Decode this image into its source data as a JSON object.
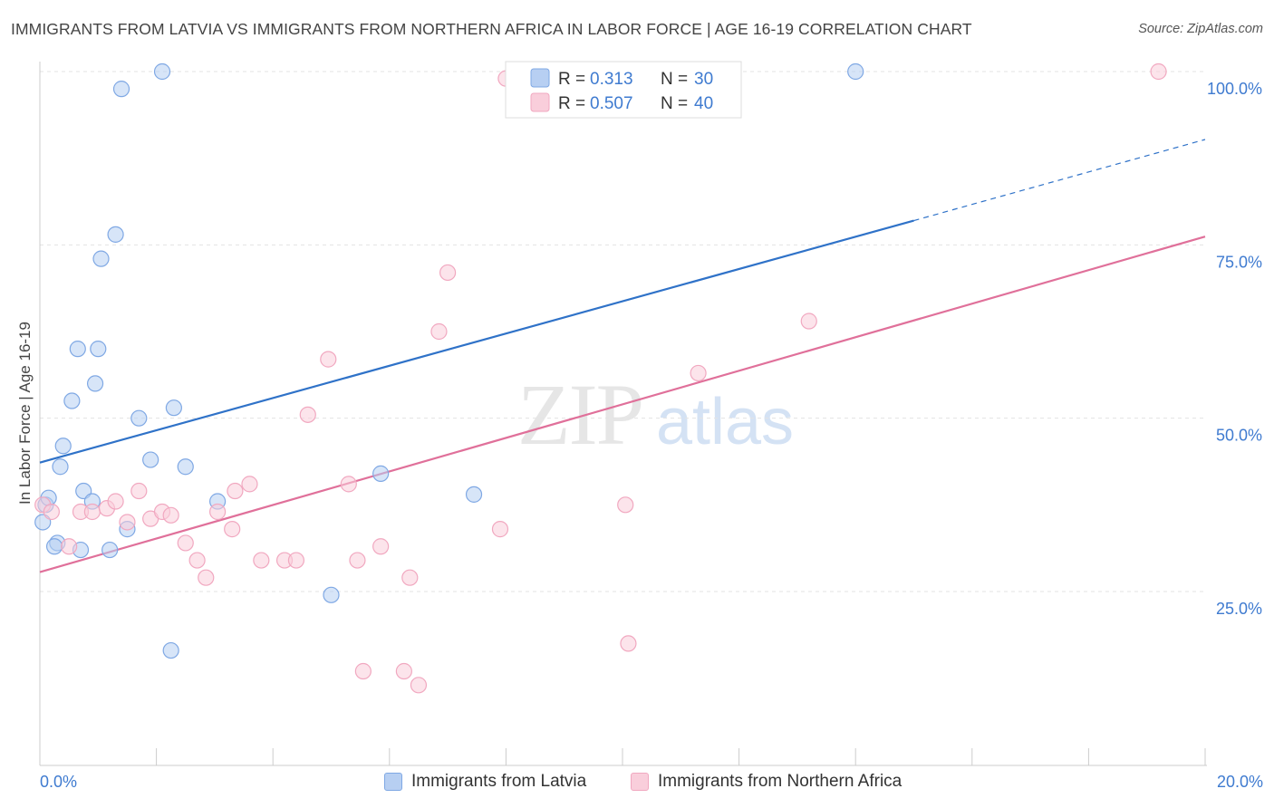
{
  "title": "IMMIGRANTS FROM LATVIA VS IMMIGRANTS FROM NORTHERN AFRICA IN LABOR FORCE | AGE 16-19 CORRELATION CHART",
  "source": "Source: ZipAtlas.com",
  "watermark": {
    "zip": "ZIP",
    "atlas": "atlas"
  },
  "chart_data": {
    "type": "scatter",
    "xlabel": "",
    "ylabel": "In Labor Force | Age 16-19",
    "xlim": [
      0,
      20
    ],
    "ylim": [
      0,
      102
    ],
    "x_tick_labels": [
      "0.0%",
      "20.0%"
    ],
    "y_ticks": [
      25,
      50,
      75,
      100
    ],
    "y_tick_labels": [
      "25.0%",
      "50.0%",
      "75.0%",
      "100.0%"
    ],
    "grid": true,
    "legend": [
      {
        "label": "R =",
        "r": "0.313",
        "n_label": "N =",
        "n": "30"
      },
      {
        "label": "R =",
        "r": "0.507",
        "n_label": "N =",
        "n": "40"
      }
    ],
    "series": [
      {
        "name": "Immigrants from Latvia",
        "color": "#7fa8e4",
        "fill": "#b7cff2",
        "line_color": "#2f72c8",
        "trend": {
          "x0": 0.0,
          "y0": 43.6,
          "x1": 15.0,
          "y1": 78.5,
          "dash_to_x": 20.0,
          "dash_to_y": 90.2
        },
        "points": [
          [
            0.1,
            37.5
          ],
          [
            0.05,
            35.0
          ],
          [
            0.15,
            38.5
          ],
          [
            0.3,
            32.0
          ],
          [
            0.25,
            31.5
          ],
          [
            0.35,
            43.0
          ],
          [
            0.4,
            46.0
          ],
          [
            0.55,
            52.5
          ],
          [
            0.65,
            60.0
          ],
          [
            0.75,
            39.5
          ],
          [
            0.7,
            31.0
          ],
          [
            0.9,
            38.0
          ],
          [
            0.95,
            55.0
          ],
          [
            1.0,
            60.0
          ],
          [
            1.05,
            73.0
          ],
          [
            1.2,
            31.0
          ],
          [
            1.3,
            76.5
          ],
          [
            1.4,
            97.5
          ],
          [
            1.5,
            34.0
          ],
          [
            1.7,
            50.0
          ],
          [
            1.9,
            44.0
          ],
          [
            2.1,
            100.0
          ],
          [
            2.25,
            16.5
          ],
          [
            2.3,
            51.5
          ],
          [
            2.5,
            43.0
          ],
          [
            3.05,
            38.0
          ],
          [
            5.0,
            24.5
          ],
          [
            5.85,
            42.0
          ],
          [
            7.45,
            39.0
          ],
          [
            14.0,
            100.0
          ]
        ]
      },
      {
        "name": "Immigrants from Northern Africa",
        "color": "#f1a8c0",
        "fill": "#f9cedb",
        "line_color": "#e0709a",
        "trend": {
          "x0": 0.0,
          "y0": 27.8,
          "x1": 20.0,
          "y1": 76.2
        },
        "points": [
          [
            0.05,
            37.5
          ],
          [
            0.2,
            36.5
          ],
          [
            0.5,
            31.5
          ],
          [
            0.7,
            36.5
          ],
          [
            0.9,
            36.5
          ],
          [
            1.15,
            37.0
          ],
          [
            1.3,
            38.0
          ],
          [
            1.5,
            35.0
          ],
          [
            1.7,
            39.5
          ],
          [
            1.9,
            35.5
          ],
          [
            2.1,
            36.5
          ],
          [
            2.25,
            36.0
          ],
          [
            2.5,
            32.0
          ],
          [
            2.7,
            29.5
          ],
          [
            2.85,
            27.0
          ],
          [
            3.05,
            36.5
          ],
          [
            3.3,
            34.0
          ],
          [
            3.35,
            39.5
          ],
          [
            3.6,
            40.5
          ],
          [
            3.8,
            29.5
          ],
          [
            4.2,
            29.5
          ],
          [
            4.4,
            29.5
          ],
          [
            4.6,
            50.5
          ],
          [
            4.95,
            58.5
          ],
          [
            5.3,
            40.5
          ],
          [
            5.45,
            29.5
          ],
          [
            5.55,
            13.5
          ],
          [
            5.85,
            31.5
          ],
          [
            6.25,
            13.5
          ],
          [
            6.5,
            11.5
          ],
          [
            6.35,
            27.0
          ],
          [
            6.85,
            62.5
          ],
          [
            7.0,
            71.0
          ],
          [
            7.9,
            34.0
          ],
          [
            8.0,
            99.0
          ],
          [
            10.05,
            37.5
          ],
          [
            10.1,
            17.5
          ],
          [
            11.3,
            56.5
          ],
          [
            13.2,
            64.0
          ],
          [
            19.2,
            100.0
          ]
        ]
      }
    ]
  }
}
